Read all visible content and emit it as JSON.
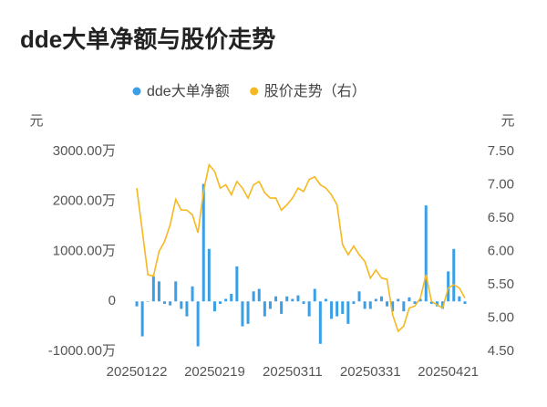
{
  "chart_data": {
    "type": "bar-line",
    "title": "dde大单净额与股价走势",
    "y_label": "元",
    "y2_label": "元",
    "categories": [
      "20250122",
      null,
      null,
      null,
      null,
      null,
      null,
      null,
      null,
      null,
      null,
      null,
      null,
      null,
      "20250219",
      null,
      null,
      null,
      null,
      null,
      null,
      null,
      null,
      null,
      null,
      null,
      null,
      null,
      "20250311",
      null,
      null,
      null,
      null,
      null,
      null,
      null,
      null,
      null,
      null,
      null,
      null,
      null,
      "20250331",
      null,
      null,
      null,
      null,
      null,
      null,
      null,
      null,
      null,
      null,
      null,
      null,
      null,
      "20250421",
      null,
      null,
      null
    ],
    "series": [
      {
        "name": "dde大单净额",
        "type": "bar",
        "color": "#3a9fe6",
        "values": [
          -100,
          -700,
          0,
          500,
          400,
          -50,
          -80,
          400,
          -150,
          -300,
          300,
          -900,
          2350,
          1050,
          -200,
          -50,
          50,
          150,
          700,
          -500,
          -450,
          200,
          250,
          -300,
          -150,
          100,
          -250,
          100,
          50,
          120,
          -50,
          -300,
          250,
          -850,
          50,
          -350,
          -300,
          -250,
          -450,
          -50,
          200,
          -150,
          -150,
          50,
          100,
          -100,
          -200,
          50,
          -200,
          80,
          -50,
          50,
          1920,
          -50,
          -100,
          -150,
          600,
          1050,
          100,
          -50
        ]
      },
      {
        "name": "股价走势（右）",
        "type": "line",
        "axis": "y2",
        "color": "#f5b820",
        "values": [
          6.95,
          6.3,
          5.65,
          5.63,
          6.0,
          6.15,
          6.4,
          6.78,
          6.62,
          6.62,
          6.55,
          6.28,
          6.9,
          7.3,
          7.2,
          6.95,
          7.0,
          6.85,
          7.05,
          6.95,
          6.8,
          7.0,
          7.05,
          6.88,
          6.8,
          6.8,
          6.62,
          6.7,
          6.8,
          6.95,
          6.9,
          7.08,
          7.12,
          7.0,
          6.95,
          6.85,
          6.7,
          6.1,
          5.95,
          6.08,
          5.95,
          5.85,
          5.6,
          5.72,
          5.6,
          5.58,
          5.05,
          4.8,
          4.88,
          5.15,
          5.18,
          5.3,
          5.65,
          5.25,
          5.2,
          5.15,
          5.45,
          5.5,
          5.45,
          5.3
        ]
      }
    ],
    "ylim": [
      -1000,
      3000
    ],
    "yticks": [
      {
        "value": -1000,
        "label": "-1000.00万"
      },
      0,
      {
        "value": 1000,
        "label": "1000.00万"
      },
      {
        "value": 2000,
        "label": "2000.00万"
      },
      {
        "value": 3000,
        "label": "3000.00万"
      }
    ],
    "y2lim": [
      4.5,
      7.5
    ],
    "y2ticks": [
      {
        "value": 4.5,
        "label": "4.50"
      },
      {
        "value": 5.0,
        "label": "5.00"
      },
      {
        "value": 5.5,
        "label": "5.50"
      },
      {
        "value": 6.0,
        "label": "6.00"
      },
      {
        "value": 6.5,
        "label": "6.50"
      },
      {
        "value": 7.0,
        "label": "7.00"
      },
      {
        "value": 7.5,
        "label": "7.50"
      }
    ],
    "grid": false
  }
}
